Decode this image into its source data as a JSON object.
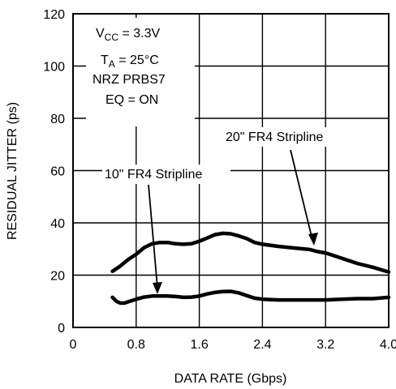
{
  "chart_data": {
    "type": "line",
    "xlabel": "DATA RATE (Gbps)",
    "ylabel": "RESIDUAL JITTER (ps)",
    "xlim": [
      0,
      4.0
    ],
    "ylim": [
      0,
      120
    ],
    "xticks": [
      "0",
      "0.8",
      "1.6",
      "2.4",
      "3.2",
      "4.0"
    ],
    "xtick_values": [
      0,
      0.8,
      1.6,
      2.4,
      3.2,
      4.0
    ],
    "yticks": [
      "0",
      "20",
      "40",
      "60",
      "80",
      "100",
      "120"
    ],
    "ytick_values": [
      0,
      20,
      40,
      60,
      80,
      100,
      120
    ],
    "grid": true,
    "conditions": {
      "vcc_main": "V",
      "vcc_sub": "CC",
      "vcc_value": " = 3.3V",
      "ta_main": "T",
      "ta_sub": "A",
      "ta_value": " = 25°C",
      "pattern": "NRZ PRBS7",
      "eq": "EQ = ON"
    },
    "series": [
      {
        "name": "20\" FR4 Stripline",
        "x": [
          0.5,
          0.6,
          0.7,
          0.8,
          0.9,
          1.0,
          1.1,
          1.2,
          1.3,
          1.4,
          1.5,
          1.6,
          1.7,
          1.8,
          1.9,
          2.0,
          2.1,
          2.2,
          2.3,
          2.4,
          2.6,
          2.8,
          3.0,
          3.1,
          3.2,
          3.3,
          3.4,
          3.6,
          3.8,
          4.0
        ],
        "y": [
          21.5,
          23.5,
          26,
          28,
          30.5,
          32,
          32.5,
          32.5,
          32,
          31.8,
          32,
          33,
          34.2,
          35.5,
          36,
          35.8,
          35,
          34,
          32.5,
          31.8,
          31,
          30.4,
          29.8,
          29,
          28.5,
          27.5,
          26.5,
          24.5,
          23,
          21.2
        ]
      },
      {
        "name": "10\" FR4 Stripline",
        "x": [
          0.5,
          0.55,
          0.6,
          0.65,
          0.7,
          0.8,
          0.9,
          1.0,
          1.1,
          1.2,
          1.3,
          1.4,
          1.5,
          1.6,
          1.7,
          1.8,
          1.9,
          2.0,
          2.1,
          2.2,
          2.3,
          2.4,
          2.6,
          2.8,
          3.0,
          3.2,
          3.4,
          3.6,
          3.8,
          4.0
        ],
        "y": [
          11.5,
          10,
          9.3,
          9.3,
          9.8,
          10.8,
          11.6,
          12,
          12,
          12,
          11.8,
          11.5,
          11.6,
          12,
          12.8,
          13.4,
          13.7,
          13.8,
          13.2,
          12.2,
          11.2,
          10.8,
          10.5,
          10.5,
          10.5,
          10.5,
          10.8,
          11,
          11,
          11.5
        ]
      }
    ],
    "annotations": [
      {
        "text": "20\" FR4 Stripline",
        "target_x": 3.0,
        "target_y": 29.8
      },
      {
        "text": "10\" FR4 Stripline",
        "target_x": 1.05,
        "target_y": 12.2
      }
    ]
  }
}
